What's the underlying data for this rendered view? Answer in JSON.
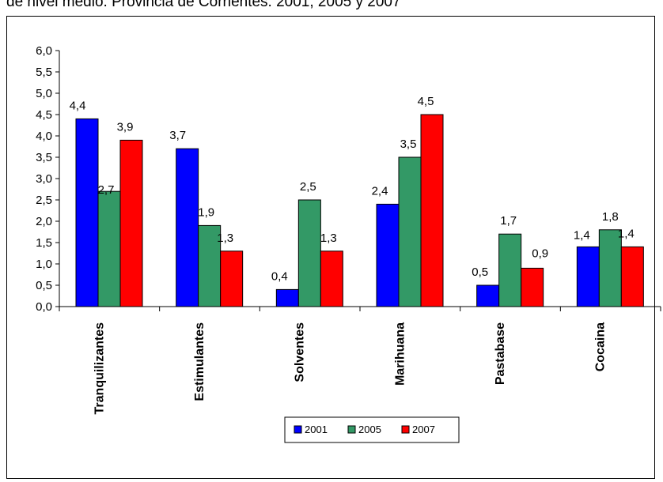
{
  "title": "de nivel medio. Provincia de Corrientes. 2001, 2005 y 2007",
  "chart_data": {
    "type": "bar",
    "categories": [
      "Tranquilizantes",
      "Estimulantes",
      "Solventes",
      "Marihuana",
      "Pastabase",
      "Cocaina"
    ],
    "series": [
      {
        "name": "2001",
        "color": "#0000ff",
        "values": [
          4.4,
          3.7,
          0.4,
          2.4,
          0.5,
          1.4
        ]
      },
      {
        "name": "2005",
        "color": "#339966",
        "values": [
          2.7,
          1.9,
          2.5,
          3.5,
          1.7,
          1.8
        ]
      },
      {
        "name": "2007",
        "color": "#ff0000",
        "values": [
          3.9,
          1.3,
          1.3,
          4.5,
          0.9,
          1.4
        ]
      }
    ],
    "ylim": [
      0,
      6
    ],
    "yticks": [
      "0,0",
      "0,5",
      "1,0",
      "1,5",
      "2,0",
      "2,5",
      "3,0",
      "3,5",
      "4,0",
      "4,5",
      "5,0",
      "5,5",
      "6,0"
    ],
    "data_labels": [
      [
        "4,4",
        "3,7",
        "0,4",
        "2,4",
        "0,5",
        "1,4"
      ],
      [
        "2,7",
        "1,9",
        "2,5",
        "3,5",
        "1,7",
        "1,8"
      ],
      [
        "3,9",
        "1,3",
        "1,3",
        "4,5",
        "0,9",
        "1,4"
      ]
    ],
    "legend_position": "bottom-center",
    "grid": false
  }
}
